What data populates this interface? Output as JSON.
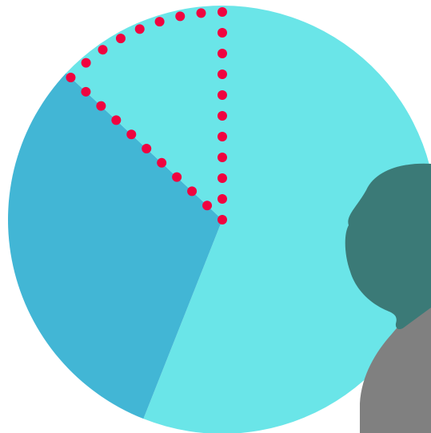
{
  "chart_data": {
    "type": "pie",
    "title": "",
    "series": [
      {
        "label": "",
        "value": 56,
        "color": "#6AE5E8"
      },
      {
        "label": "",
        "value": 31,
        "color": "#42B6D5"
      },
      {
        "label": "",
        "value": 13,
        "color": "#6AE5E8",
        "highlighted": true
      }
    ],
    "start_angle_deg": 0,
    "direction": "clockwise",
    "highlight": {
      "style": "dotted-outline",
      "color": "#F0033F"
    }
  },
  "overlay": {
    "icon": "person-silhouette-icon",
    "head_color": "#3B7A77",
    "body_color": "#808080"
  }
}
